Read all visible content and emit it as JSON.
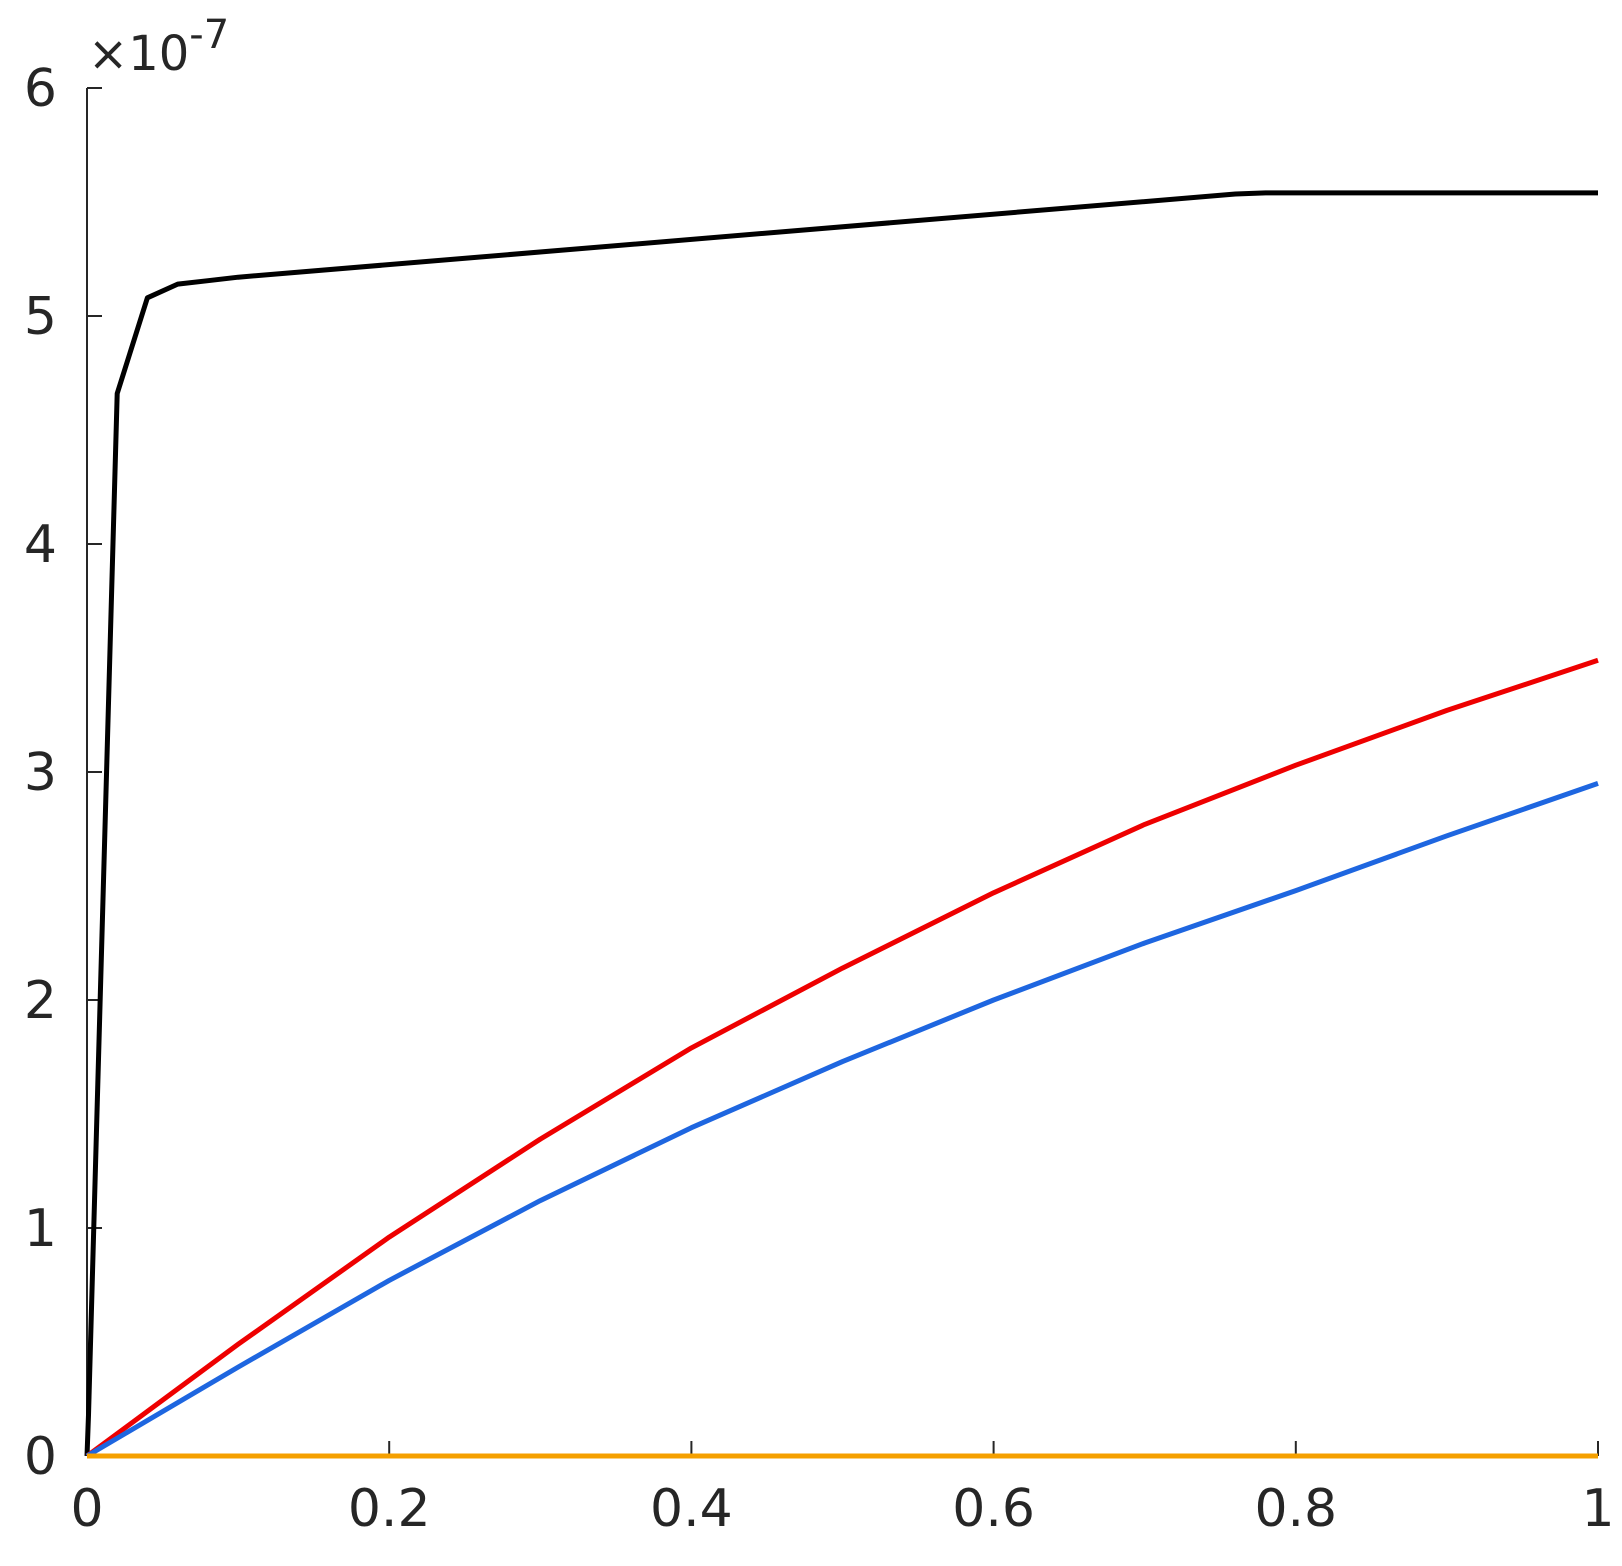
{
  "chart_data": {
    "type": "line",
    "title": "",
    "xlabel": "",
    "ylabel": "",
    "xlim": [
      0,
      1
    ],
    "ylim": [
      0,
      6
    ],
    "y_exponent_label": {
      "multiplier": "×10",
      "exponent": "-7"
    },
    "x_ticks": [
      0,
      0.2,
      0.4,
      0.6,
      0.8,
      1
    ],
    "x_tick_labels": [
      "0",
      "0.2",
      "0.4",
      "0.6",
      "0.8",
      "1"
    ],
    "y_ticks": [
      0,
      1,
      2,
      3,
      4,
      5,
      6
    ],
    "y_tick_labels": [
      "0",
      "1",
      "2",
      "3",
      "4",
      "5",
      "6"
    ],
    "grid": false,
    "legend": "none",
    "series": [
      {
        "color": "#000000",
        "x": [
          0,
          0.001,
          0.02,
          0.04,
          0.06,
          0.08,
          0.1,
          0.76,
          0.78,
          1.0
        ],
        "y": [
          0,
          0.18,
          4.66,
          5.08,
          5.14,
          5.155,
          5.17,
          5.535,
          5.54,
          5.54
        ]
      },
      {
        "color": "#ee0000",
        "x": [
          0,
          0.1,
          0.2,
          0.3,
          0.4,
          0.5,
          0.6,
          0.7,
          0.8,
          0.9,
          1.0
        ],
        "y": [
          0,
          0.49,
          0.96,
          1.39,
          1.79,
          2.14,
          2.47,
          2.77,
          3.03,
          3.27,
          3.49
        ]
      },
      {
        "color": "#1e66e0",
        "x": [
          0,
          0.1,
          0.2,
          0.3,
          0.4,
          0.5,
          0.6,
          0.7,
          0.8,
          0.9,
          1.0
        ],
        "y": [
          0,
          0.39,
          0.77,
          1.12,
          1.44,
          1.73,
          2.0,
          2.25,
          2.48,
          2.72,
          2.95
        ]
      },
      {
        "color": "#f5a000",
        "x": [
          0,
          1.0
        ],
        "y": [
          0,
          0
        ]
      }
    ]
  }
}
